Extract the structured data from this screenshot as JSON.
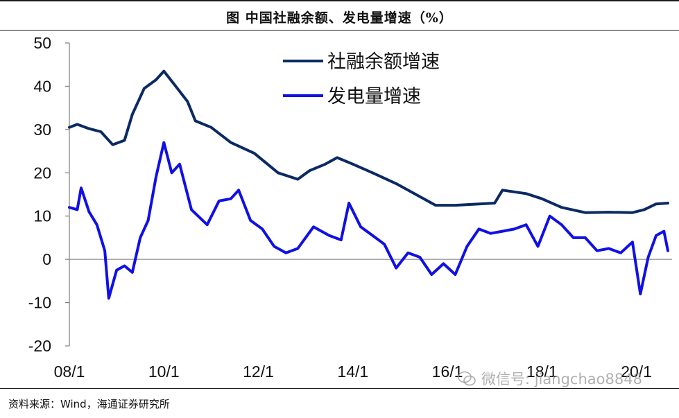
{
  "header": {
    "title": "图  中国社融余额、发电量增速（%）"
  },
  "footer": {
    "source": "资料来源：Wind，海通证券研究所"
  },
  "watermark": {
    "text": "微信号: jiangchao8848"
  },
  "colors": {
    "series1": "#0b2a63",
    "series2": "#1010e6",
    "axis": "#7f7f7f",
    "zero_line": "#8c8c8c"
  },
  "chart_data": {
    "type": "line",
    "title": "",
    "xlabel": "",
    "ylabel": "",
    "ylim": [
      -20,
      50
    ],
    "yticks": [
      50,
      40,
      30,
      20,
      10,
      0,
      -10,
      -20
    ],
    "ytick_labels": [
      "50",
      "40",
      "30",
      "20",
      "10",
      "0",
      "-10",
      "-20"
    ],
    "xlim": [
      "2008-01",
      "2020-09"
    ],
    "xticks": [
      "08/1",
      "10/1",
      "12/1",
      "14/1",
      "16/1",
      "18/1",
      "20/1"
    ],
    "grid": false,
    "legend_position": "top-center",
    "series": [
      {
        "name": "社融余额增速",
        "points": [
          [
            "2008-01",
            30.5
          ],
          [
            "2008-03",
            31.2
          ],
          [
            "2008-06",
            30.2
          ],
          [
            "2008-09",
            29.5
          ],
          [
            "2008-12",
            26.5
          ],
          [
            "2009-03",
            27.5
          ],
          [
            "2009-05",
            33.5
          ],
          [
            "2009-08",
            39.5
          ],
          [
            "2009-11",
            41.5
          ],
          [
            "2010-01",
            43.5
          ],
          [
            "2010-04",
            40.0
          ],
          [
            "2010-07",
            36.5
          ],
          [
            "2010-09",
            32.0
          ],
          [
            "2011-01",
            30.5
          ],
          [
            "2011-06",
            27.0
          ],
          [
            "2011-12",
            24.5
          ],
          [
            "2012-06",
            20.0
          ],
          [
            "2012-11",
            18.5
          ],
          [
            "2013-02",
            20.5
          ],
          [
            "2013-06",
            22.0
          ],
          [
            "2013-09",
            23.5
          ],
          [
            "2014-01",
            22.0
          ],
          [
            "2014-06",
            20.0
          ],
          [
            "2014-12",
            17.5
          ],
          [
            "2015-06",
            14.5
          ],
          [
            "2015-10",
            12.5
          ],
          [
            "2016-03",
            12.5
          ],
          [
            "2016-09",
            12.8
          ],
          [
            "2017-01",
            13.0
          ],
          [
            "2017-03",
            16.0
          ],
          [
            "2017-09",
            15.2
          ],
          [
            "2018-01",
            14.0
          ],
          [
            "2018-06",
            12.0
          ],
          [
            "2018-12",
            10.8
          ],
          [
            "2019-06",
            10.9
          ],
          [
            "2019-12",
            10.8
          ],
          [
            "2020-03",
            11.5
          ],
          [
            "2020-06",
            12.8
          ],
          [
            "2020-09",
            13.0
          ]
        ]
      },
      {
        "name": "发电量增速",
        "points": [
          [
            "2008-01",
            12.0
          ],
          [
            "2008-03",
            11.5
          ],
          [
            "2008-04",
            16.5
          ],
          [
            "2008-06",
            11.0
          ],
          [
            "2008-08",
            8.0
          ],
          [
            "2008-10",
            2.0
          ],
          [
            "2008-11",
            -9.0
          ],
          [
            "2009-01",
            -2.5
          ],
          [
            "2009-03",
            -1.5
          ],
          [
            "2009-05",
            -3.0
          ],
          [
            "2009-07",
            5.0
          ],
          [
            "2009-09",
            9.0
          ],
          [
            "2009-11",
            19.0
          ],
          [
            "2010-01",
            27.0
          ],
          [
            "2010-03",
            20.0
          ],
          [
            "2010-05",
            22.0
          ],
          [
            "2010-08",
            11.5
          ],
          [
            "2010-12",
            8.0
          ],
          [
            "2011-03",
            13.5
          ],
          [
            "2011-06",
            14.0
          ],
          [
            "2011-08",
            16.0
          ],
          [
            "2011-11",
            9.0
          ],
          [
            "2012-02",
            7.0
          ],
          [
            "2012-05",
            3.0
          ],
          [
            "2012-08",
            1.5
          ],
          [
            "2012-11",
            2.5
          ],
          [
            "2013-03",
            7.5
          ],
          [
            "2013-07",
            5.5
          ],
          [
            "2013-10",
            4.5
          ],
          [
            "2013-12",
            13.0
          ],
          [
            "2014-03",
            7.5
          ],
          [
            "2014-06",
            5.5
          ],
          [
            "2014-09",
            3.5
          ],
          [
            "2014-12",
            -2.0
          ],
          [
            "2015-03",
            1.5
          ],
          [
            "2015-06",
            0.5
          ],
          [
            "2015-09",
            -3.5
          ],
          [
            "2015-12",
            -1.0
          ],
          [
            "2016-03",
            -3.5
          ],
          [
            "2016-06",
            3.0
          ],
          [
            "2016-09",
            7.0
          ],
          [
            "2016-12",
            6.0
          ],
          [
            "2017-03",
            6.5
          ],
          [
            "2017-06",
            7.0
          ],
          [
            "2017-09",
            8.0
          ],
          [
            "2017-12",
            3.0
          ],
          [
            "2018-03",
            10.0
          ],
          [
            "2018-06",
            8.0
          ],
          [
            "2018-09",
            5.0
          ],
          [
            "2018-12",
            5.0
          ],
          [
            "2019-03",
            2.0
          ],
          [
            "2019-06",
            2.5
          ],
          [
            "2019-09",
            1.5
          ],
          [
            "2019-12",
            4.0
          ],
          [
            "2020-02",
            -8.0
          ],
          [
            "2020-04",
            0.5
          ],
          [
            "2020-06",
            5.5
          ],
          [
            "2020-08",
            6.5
          ],
          [
            "2020-09",
            2.0
          ]
        ]
      }
    ]
  }
}
